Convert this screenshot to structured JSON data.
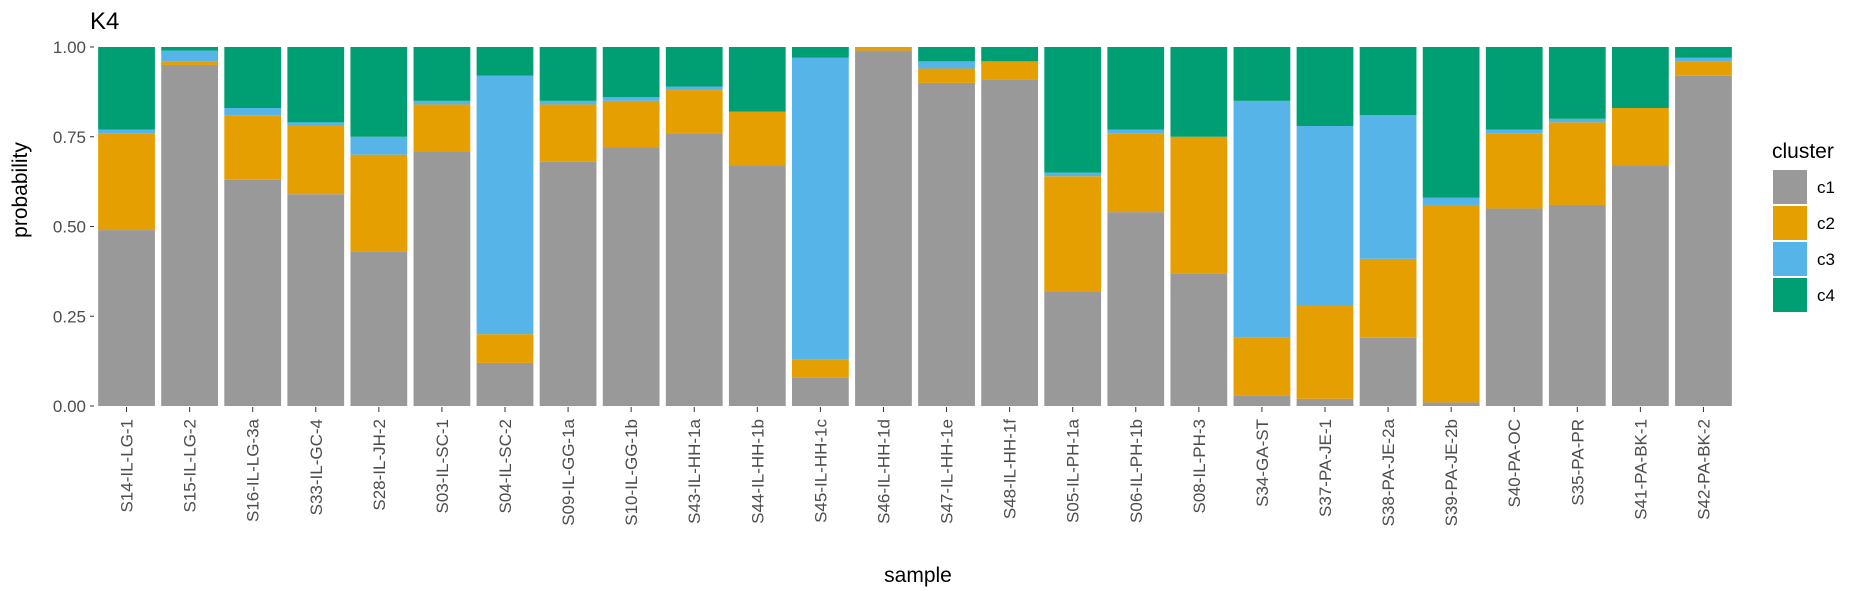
{
  "chart_data": {
    "type": "bar",
    "stacked": true,
    "title": "K4",
    "xlabel": "sample",
    "ylabel": "probability",
    "ylim": [
      0,
      1
    ],
    "yticks": [
      0,
      0.25,
      0.5,
      0.75,
      1
    ],
    "ytick_labels": [
      "0.00",
      "0.25",
      "0.50",
      "0.75",
      "1.00"
    ],
    "legend_title": "cluster",
    "legend_position": "right",
    "grid": false,
    "categories": [
      "S14-IL-LG-1",
      "S15-IL-LG-2",
      "S16-IL-LG-3a",
      "S33-IL-GC-4",
      "S28-IL-JH-2",
      "S03-IL-SC-1",
      "S04-IL-SC-2",
      "S09-IL-GG-1a",
      "S10-IL-GG-1b",
      "S43-IL-HH-1a",
      "S44-IL-HH-1b",
      "S45-IL-HH-1c",
      "S46-IL-HH-1d",
      "S47-IL-HH-1e",
      "S48-IL-HH-1f",
      "S05-IL-PH-1a",
      "S06-IL-PH-1b",
      "S08-IL-PH-3",
      "S34-GA-ST",
      "S37-PA-JE-1",
      "S38-PA-JE-2a",
      "S39-PA-JE-2b",
      "S40-PA-OC",
      "S35-PA-PR",
      "S41-PA-BK-1",
      "S42-PA-BK-2"
    ],
    "series": [
      {
        "name": "c1",
        "color": "#999999",
        "values": [
          0.49,
          0.95,
          0.63,
          0.59,
          0.43,
          0.71,
          0.12,
          0.68,
          0.72,
          0.76,
          0.67,
          0.08,
          0.99,
          0.9,
          0.91,
          0.32,
          0.54,
          0.37,
          0.03,
          0.02,
          0.19,
          0.01,
          0.55,
          0.56,
          0.67,
          0.92
        ]
      },
      {
        "name": "c2",
        "color": "#E69F00",
        "values": [
          0.27,
          0.01,
          0.18,
          0.19,
          0.27,
          0.13,
          0.08,
          0.16,
          0.13,
          0.12,
          0.15,
          0.05,
          0.01,
          0.04,
          0.05,
          0.32,
          0.22,
          0.38,
          0.16,
          0.26,
          0.22,
          0.55,
          0.21,
          0.23,
          0.16,
          0.04
        ]
      },
      {
        "name": "c3",
        "color": "#56B4E9",
        "values": [
          0.01,
          0.03,
          0.02,
          0.01,
          0.05,
          0.01,
          0.72,
          0.01,
          0.01,
          0.01,
          0.0,
          0.84,
          0.0,
          0.02,
          0.0,
          0.01,
          0.01,
          0.0,
          0.66,
          0.5,
          0.4,
          0.02,
          0.01,
          0.01,
          0.0,
          0.01
        ]
      },
      {
        "name": "c4",
        "color": "#009E73",
        "values": [
          0.23,
          0.01,
          0.17,
          0.21,
          0.25,
          0.15,
          0.08,
          0.15,
          0.14,
          0.11,
          0.18,
          0.03,
          0.0,
          0.04,
          0.04,
          0.35,
          0.23,
          0.25,
          0.15,
          0.22,
          0.19,
          0.42,
          0.23,
          0.2,
          0.17,
          0.03
        ]
      }
    ]
  }
}
